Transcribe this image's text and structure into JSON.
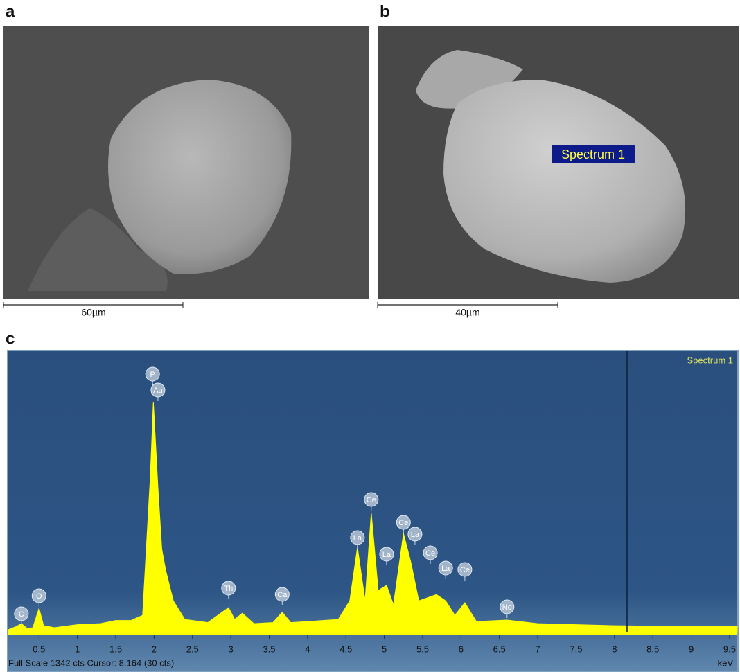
{
  "panels": [
    {
      "letter": "a",
      "scale_bar": "60µm"
    },
    {
      "letter": "b",
      "scale_bar": "40µm",
      "annotation": "Spectrum 1"
    }
  ],
  "chart_data": {
    "type": "area",
    "letter": "c",
    "series_name": "Spectrum 1",
    "color": "#ffff00",
    "x": [
      0.1,
      0.2,
      0.27,
      0.35,
      0.42,
      0.5,
      0.56,
      0.7,
      1.0,
      1.3,
      1.5,
      1.7,
      1.85,
      1.95,
      1.99,
      2.05,
      2.1,
      2.15,
      2.25,
      2.4,
      2.7,
      2.97,
      3.05,
      3.15,
      3.3,
      3.55,
      3.67,
      3.78,
      4.0,
      4.4,
      4.55,
      4.65,
      4.75,
      4.83,
      4.92,
      5.03,
      5.12,
      5.25,
      5.35,
      5.45,
      5.6,
      5.68,
      5.8,
      5.92,
      6.05,
      6.2,
      6.6,
      7.0,
      8.0,
      9.0,
      9.6
    ],
    "values": [
      10,
      25,
      40,
      15,
      20,
      114,
      30,
      20,
      35,
      40,
      55,
      55,
      80,
      750,
      1114,
      700,
      400,
      300,
      150,
      60,
      45,
      117,
      60,
      90,
      40,
      45,
      95,
      45,
      50,
      60,
      150,
      409,
      150,
      577,
      200,
      225,
      130,
      476,
      330,
      150,
      170,
      180,
      150,
      80,
      141,
      50,
      57,
      40,
      30,
      25,
      25
    ],
    "xlim": [
      0.1,
      9.6
    ],
    "ylim": [
      0,
      1342
    ],
    "xticks": [
      0.5,
      1,
      1.5,
      2,
      2.5,
      3,
      3.5,
      4,
      4.5,
      5,
      5.5,
      6,
      6.5,
      7,
      7.5,
      8,
      8.5,
      9,
      9.5
    ],
    "x_unit": "keV",
    "cursor": 8.164,
    "status": "Full Scale 1342 cts Cursor: 8.164  (30 cts)",
    "peak_labels": [
      {
        "label": "C",
        "x": 0.27
      },
      {
        "label": "O",
        "x": 0.5
      },
      {
        "label": "P",
        "x": 1.98
      },
      {
        "label": "Au",
        "x": 2.05
      },
      {
        "label": "Th",
        "x": 2.97
      },
      {
        "label": "Ca",
        "x": 3.67
      },
      {
        "label": "La",
        "x": 4.65
      },
      {
        "label": "Ce",
        "x": 4.83
      },
      {
        "label": "La",
        "x": 5.03
      },
      {
        "label": "Ce",
        "x": 5.25
      },
      {
        "label": "La",
        "x": 5.4
      },
      {
        "label": "Ce",
        "x": 5.6
      },
      {
        "label": "La",
        "x": 5.8
      },
      {
        "label": "Ce",
        "x": 6.05
      },
      {
        "label": "Nd",
        "x": 6.6
      }
    ]
  }
}
